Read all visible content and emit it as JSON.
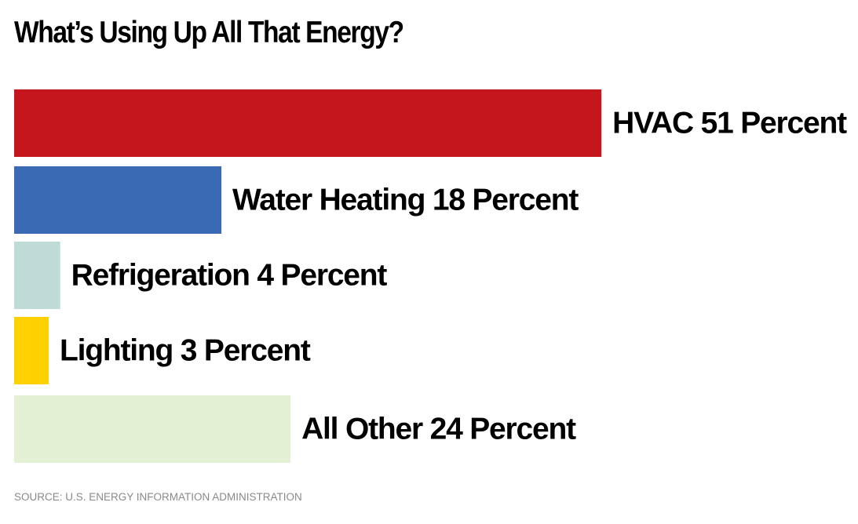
{
  "title": "What’s Using Up All That Energy?",
  "source": "SOURCE: U.S. ENERGY INFORMATION ADMINISTRATION",
  "chart_data": {
    "type": "bar",
    "orientation": "horizontal",
    "title": "What’s Using Up All That Energy?",
    "unit": "Percent",
    "categories": [
      "HVAC",
      "Water Heating",
      "Refrigeration",
      "Lighting",
      "All Other"
    ],
    "values": [
      51,
      18,
      4,
      3,
      24
    ],
    "labels": [
      "HVAC 51 Percent",
      "Water Heating 18 Percent",
      "Refrigeration 4 Percent",
      "Lighting 3 Percent",
      "All Other 24 Percent"
    ],
    "colors": [
      "#c4161c",
      "#3a6ab3",
      "#bfdbd8",
      "#ffd100",
      "#e3f0d4"
    ],
    "xlim": [
      0,
      100
    ],
    "grid": false,
    "legend": "none"
  }
}
